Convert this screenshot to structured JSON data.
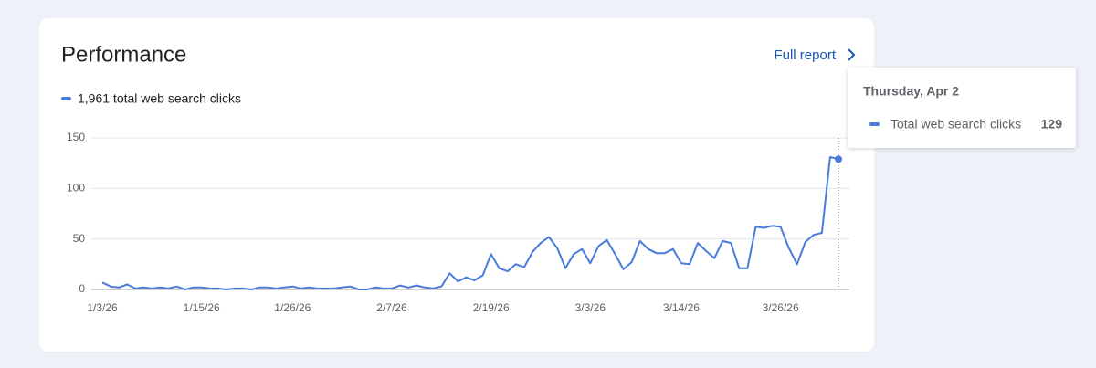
{
  "card": {
    "title": "Performance",
    "link": "Full report"
  },
  "chart_data": {
    "type": "line",
    "legend_label": "1,961 total web search clicks",
    "tooltip": {
      "title": "Thursday, Apr 2"
    },
    "categories": [
      "1/3/26",
      null,
      null,
      null,
      null,
      null,
      null,
      null,
      null,
      null,
      null,
      null,
      "1/15/26",
      null,
      null,
      null,
      null,
      null,
      null,
      null,
      null,
      null,
      null,
      "1/26/26",
      null,
      null,
      null,
      null,
      null,
      null,
      null,
      null,
      null,
      null,
      null,
      "2/7/26",
      null,
      null,
      null,
      null,
      null,
      null,
      null,
      null,
      null,
      null,
      null,
      "2/19/26",
      null,
      null,
      null,
      null,
      null,
      null,
      null,
      null,
      null,
      null,
      null,
      "3/3/26",
      null,
      null,
      null,
      null,
      null,
      null,
      null,
      null,
      null,
      null,
      "3/14/26",
      null,
      null,
      null,
      null,
      null,
      null,
      null,
      null,
      null,
      null,
      null,
      "3/26/26",
      null,
      null,
      null,
      null,
      null,
      null,
      null
    ],
    "series": [
      {
        "name": "Total web search clicks",
        "color": "#4a7bdc",
        "values": [
          7,
          3,
          2,
          5,
          1,
          2,
          1,
          2,
          1,
          3,
          0,
          2,
          2,
          1,
          1,
          0,
          1,
          1,
          0,
          2,
          2,
          1,
          2,
          3,
          1,
          2,
          1,
          1,
          1,
          2,
          3,
          0,
          0,
          2,
          1,
          1,
          4,
          2,
          4,
          2,
          1,
          3,
          16,
          8,
          12,
          9,
          14,
          35,
          21,
          18,
          25,
          22,
          37,
          46,
          52,
          41,
          21,
          35,
          40,
          26,
          43,
          49,
          35,
          20,
          27,
          48,
          40,
          36,
          36,
          40,
          26,
          25,
          46,
          38,
          31,
          48,
          46,
          21,
          21,
          62,
          61,
          63,
          62,
          41,
          25,
          47,
          54,
          56,
          131,
          129
        ]
      }
    ],
    "ylim": [
      0,
      150
    ],
    "yticks": [
      0,
      50,
      100,
      150
    ],
    "grid": true
  }
}
